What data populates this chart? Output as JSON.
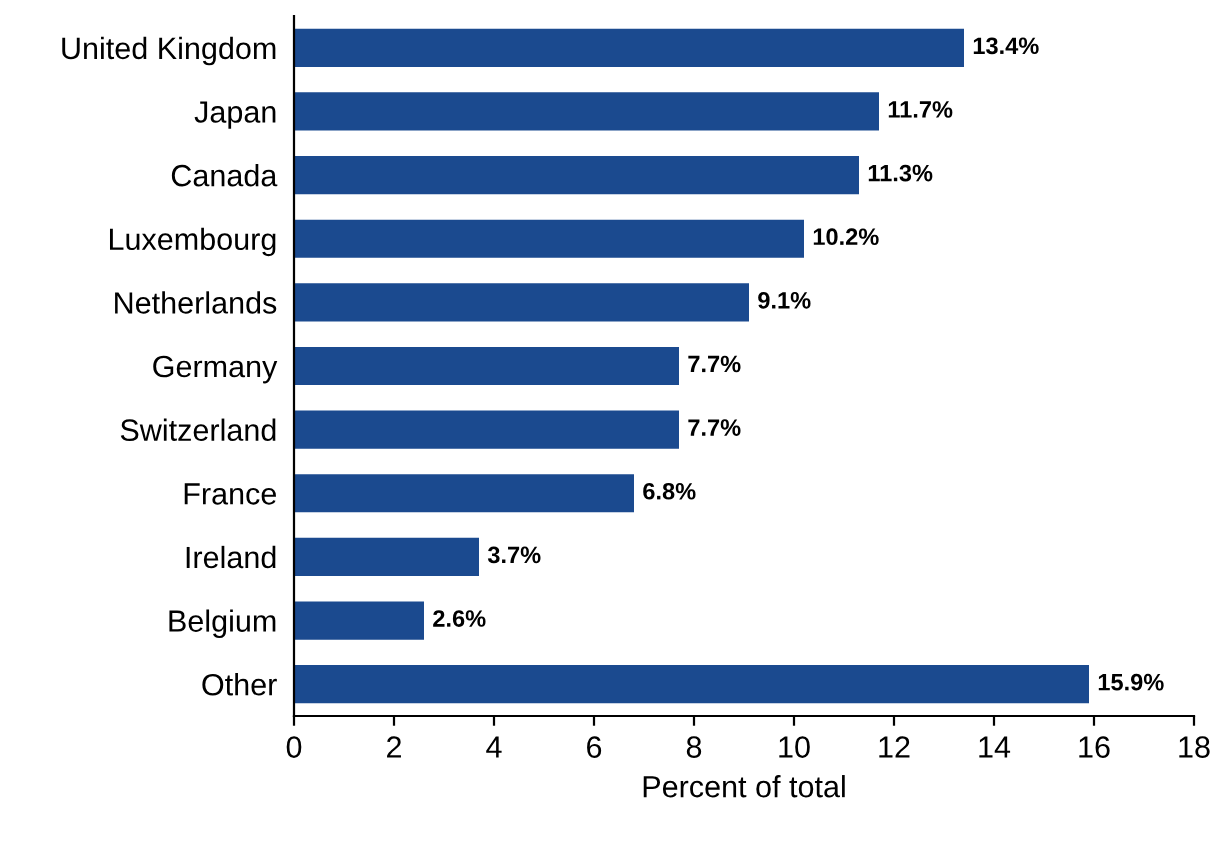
{
  "chart_data": {
    "type": "bar",
    "orientation": "horizontal",
    "xlabel": "Percent of total",
    "categories": [
      "United Kingdom",
      "Japan",
      "Canada",
      "Luxembourg",
      "Netherlands",
      "Germany",
      "Switzerland",
      "France",
      "Ireland",
      "Belgium",
      "Other"
    ],
    "values": [
      13.4,
      11.7,
      11.3,
      10.2,
      9.1,
      7.7,
      7.7,
      6.8,
      3.7,
      2.6,
      15.9
    ],
    "value_labels": [
      "13.4%",
      "11.7%",
      "11.3%",
      "10.2%",
      "9.1%",
      "7.7%",
      "7.7%",
      "6.8%",
      "3.7%",
      "2.6%",
      "15.9%"
    ],
    "color": "#1b4a8f",
    "xlim": [
      0,
      18
    ],
    "xticks": [
      0,
      2,
      4,
      6,
      8,
      10,
      12,
      14,
      16,
      18
    ],
    "grid": false,
    "legend": false
  }
}
